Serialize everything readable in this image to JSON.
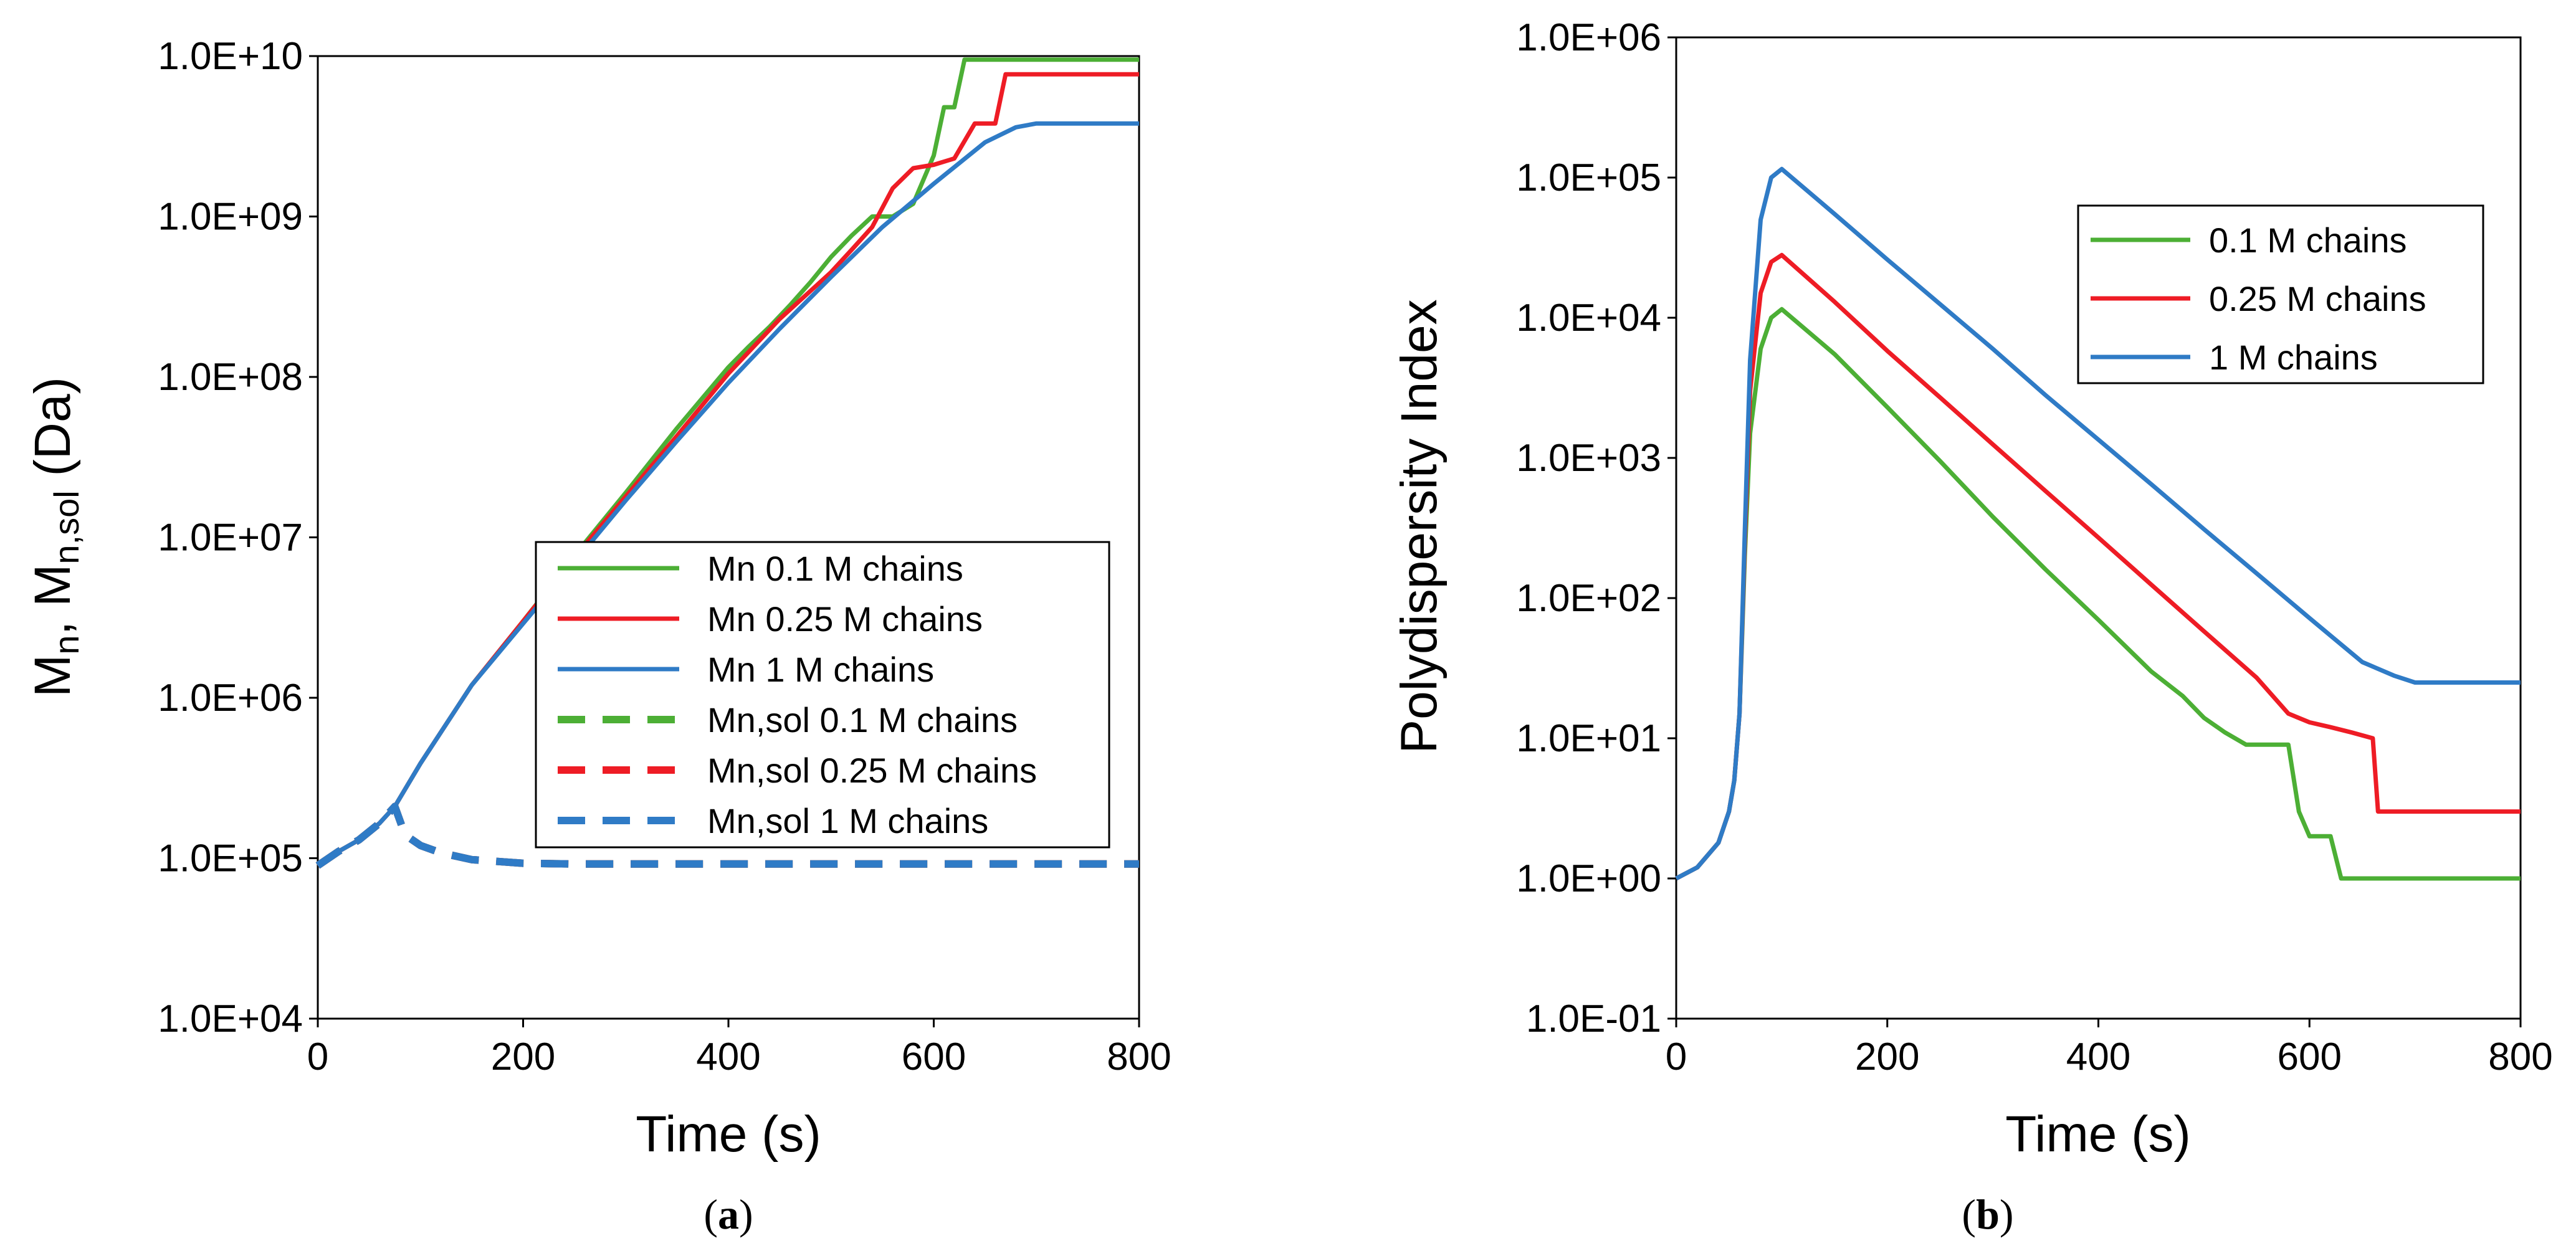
{
  "chart_data": [
    {
      "panel": "a",
      "panel_label": "a",
      "type": "line",
      "title": "",
      "xlabel": "Time (s)",
      "ylabel": "M_n, M_n,sol (Da)",
      "ylabel_parts": {
        "m1": "M",
        "sub1": "n",
        "sep": ", ",
        "m2": "M",
        "sub2": "n,sol",
        "unit": " (Da)"
      },
      "xlim": [
        0,
        800
      ],
      "ylim": [
        10000,
        10000000000
      ],
      "yscale": "log",
      "x_ticks": [
        "0",
        "200",
        "400",
        "600",
        "800"
      ],
      "y_ticks": [
        "1.0E+04",
        "1.0E+05",
        "1.0E+06",
        "1.0E+07",
        "1.0E+08",
        "1.0E+09",
        "1.0E+10"
      ],
      "legend_position": "center-right",
      "series": [
        {
          "name": "Mn 0.1 M chains",
          "color": "#4caf35",
          "dash": false,
          "x": [
            0,
            20,
            40,
            60,
            75,
            100,
            150,
            200,
            250,
            300,
            350,
            400,
            420,
            440,
            460,
            480,
            500,
            520,
            540,
            560,
            580,
            600,
            610,
            620,
            630,
            640,
            800
          ],
          "y": [
            90000,
            110000,
            130000,
            165000,
            210000,
            390000,
            1200000,
            3000000,
            7700000,
            19000000,
            48000000,
            115000000,
            155000000,
            205000000,
            280000000,
            390000000,
            560000000,
            760000000,
            1000000000,
            1000000000,
            1200000000,
            2400000000,
            4800000000,
            4800000000,
            9500000000,
            9500000000,
            9500000000
          ]
        },
        {
          "name": "Mn 0.25 M chains",
          "color": "#ee1c25",
          "dash": false,
          "x": [
            0,
            20,
            40,
            60,
            75,
            100,
            150,
            200,
            250,
            300,
            350,
            400,
            450,
            500,
            520,
            540,
            560,
            580,
            600,
            620,
            640,
            660,
            670,
            800
          ],
          "y": [
            90000,
            110000,
            130000,
            165000,
            210000,
            390000,
            1200000,
            3000000,
            7500000,
            18000000,
            43000000,
            105000000,
            230000000,
            450000000,
            620000000,
            860000000,
            1500000000,
            2000000000,
            2100000000,
            2300000000,
            3800000000,
            3800000000,
            7700000000,
            7700000000
          ]
        },
        {
          "name": "Mn 1 M chains",
          "color": "#2f7bc6",
          "dash": false,
          "x": [
            0,
            20,
            40,
            60,
            75,
            100,
            150,
            200,
            250,
            300,
            350,
            400,
            450,
            500,
            550,
            600,
            650,
            680,
            700,
            800
          ],
          "y": [
            90000,
            110000,
            130000,
            165000,
            210000,
            390000,
            1200000,
            2900000,
            7000000,
            17000000,
            40000000,
            92000000,
            200000000,
            420000000,
            860000000,
            1600000000,
            2900000000,
            3600000000,
            3800000000,
            3800000000
          ]
        },
        {
          "name": "Mn,sol 0.1 M chains",
          "color": "#4caf35",
          "dash": true,
          "x": [
            0,
            20,
            40,
            60,
            75,
            85,
            100,
            120,
            150,
            200,
            250,
            300,
            400,
            500,
            600,
            700,
            800
          ],
          "y": [
            90000,
            110000,
            130000,
            165000,
            210000,
            140000,
            120000,
            108000,
            98000,
            93000,
            92000,
            92000,
            92000,
            92000,
            92000,
            92000,
            92000
          ]
        },
        {
          "name": "Mn,sol 0.25 M chains",
          "color": "#ee1c25",
          "dash": true,
          "x": [
            0,
            20,
            40,
            60,
            75,
            85,
            100,
            120,
            150,
            200,
            250,
            300,
            400,
            500,
            600,
            700,
            800
          ],
          "y": [
            90000,
            110000,
            130000,
            165000,
            210000,
            140000,
            120000,
            108000,
            98000,
            93000,
            92000,
            92000,
            92000,
            92000,
            92000,
            92000,
            92000
          ]
        },
        {
          "name": "Mn,sol 1 M chains",
          "color": "#2f7bc6",
          "dash": true,
          "x": [
            0,
            20,
            40,
            60,
            75,
            85,
            100,
            120,
            150,
            200,
            250,
            300,
            400,
            500,
            600,
            700,
            800
          ],
          "y": [
            90000,
            110000,
            130000,
            165000,
            210000,
            140000,
            120000,
            108000,
            98000,
            93000,
            92000,
            92000,
            92000,
            92000,
            92000,
            92000,
            92000
          ]
        }
      ]
    },
    {
      "panel": "b",
      "panel_label": "b",
      "type": "line",
      "title": "",
      "xlabel": "Time (s)",
      "ylabel": "Polydispersity Index",
      "xlim": [
        0,
        800
      ],
      "ylim": [
        0.1,
        1000000
      ],
      "yscale": "log",
      "x_ticks": [
        "0",
        "200",
        "400",
        "600",
        "800"
      ],
      "y_ticks": [
        "1.0E-01",
        "1.0E+00",
        "1.0E+01",
        "1.0E+02",
        "1.0E+03",
        "1.0E+04",
        "1.0E+05",
        "1.0E+06"
      ],
      "legend_position": "top-right",
      "series": [
        {
          "name": "0.1 M chains",
          "color": "#4caf35",
          "dash": false,
          "x": [
            0,
            20,
            40,
            50,
            55,
            60,
            65,
            70,
            80,
            90,
            100,
            150,
            200,
            250,
            300,
            350,
            400,
            450,
            480,
            500,
            520,
            540,
            550,
            560,
            580,
            590,
            600,
            610,
            620,
            630,
            800
          ],
          "y": [
            1,
            1.2,
            1.8,
            3,
            5,
            15,
            200,
            1500,
            6000,
            10000,
            11500,
            5500,
            2300,
            950,
            380,
            160,
            70,
            30,
            20,
            14,
            11,
            9,
            9,
            9,
            9,
            3,
            2,
            2,
            2,
            1,
            1
          ]
        },
        {
          "name": "0.25 M chains",
          "color": "#ee1c25",
          "dash": false,
          "x": [
            0,
            20,
            40,
            50,
            55,
            60,
            65,
            70,
            80,
            90,
            100,
            150,
            200,
            250,
            300,
            350,
            400,
            450,
            500,
            550,
            580,
            600,
            620,
            640,
            660,
            665,
            800
          ],
          "y": [
            1,
            1.2,
            1.8,
            3,
            5,
            15,
            250,
            3000,
            15000,
            25000,
            28000,
            13000,
            5800,
            2700,
            1250,
            580,
            270,
            125,
            58,
            27,
            15,
            13,
            12,
            11,
            10,
            3,
            3
          ]
        },
        {
          "name": "1 M chains",
          "color": "#2f7bc6",
          "dash": false,
          "x": [
            0,
            20,
            40,
            50,
            55,
            60,
            65,
            70,
            80,
            90,
            100,
            150,
            200,
            250,
            300,
            350,
            400,
            450,
            500,
            550,
            600,
            650,
            680,
            700,
            800
          ],
          "y": [
            1,
            1.2,
            1.8,
            3,
            5,
            15,
            300,
            5000,
            50000,
            100000,
            115000,
            55000,
            26000,
            12500,
            6000,
            2800,
            1350,
            650,
            310,
            150,
            72,
            35,
            28,
            25,
            25
          ]
        }
      ]
    }
  ]
}
